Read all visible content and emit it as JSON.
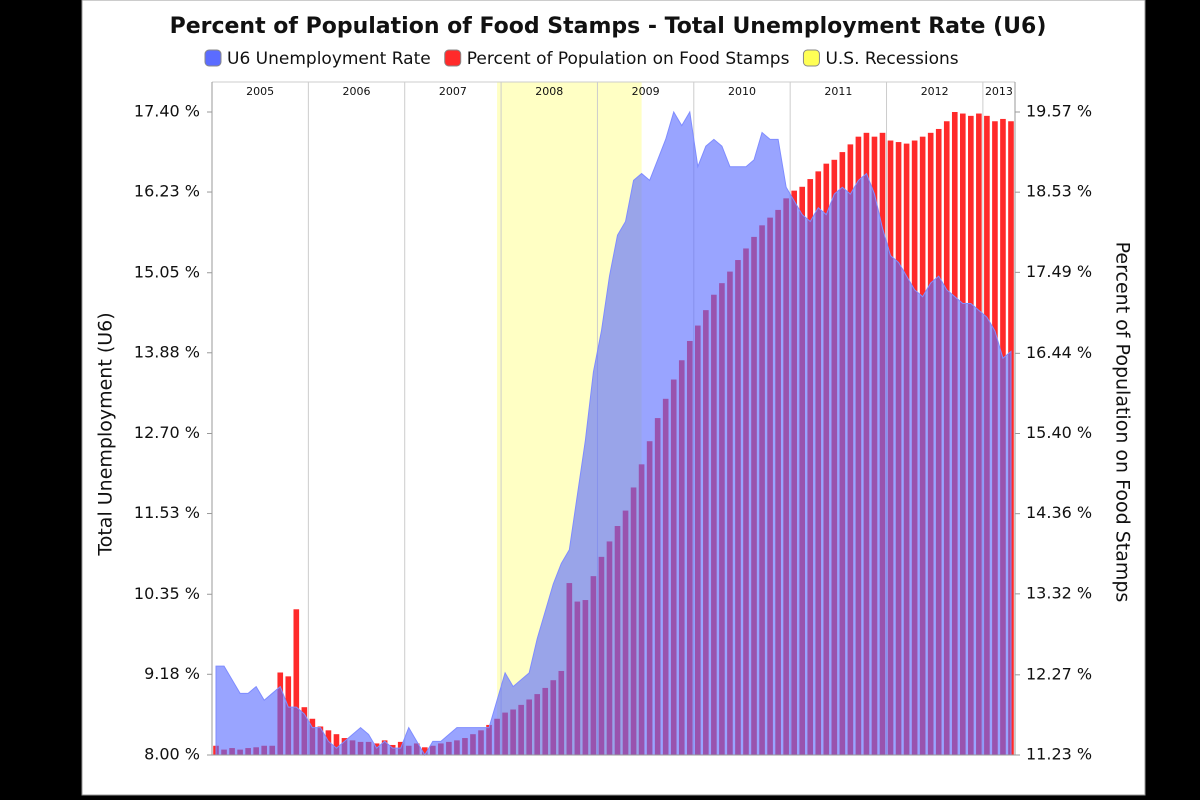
{
  "chart_data": {
    "type": "bar-area",
    "title": "Percent of Population of Food Stamps - Total Unemployment Rate (U6)",
    "y_label": "Total Unemployment (U6)",
    "y2_label": "Percent of Population on Food Stamps",
    "categories": [
      "2005",
      null,
      null,
      null,
      null,
      null,
      null,
      null,
      null,
      null,
      null,
      null,
      "2006",
      null,
      null,
      null,
      null,
      null,
      null,
      null,
      null,
      null,
      null,
      null,
      "2007",
      null,
      null,
      null,
      null,
      null,
      null,
      null,
      null,
      null,
      null,
      null,
      "2008",
      null,
      null,
      null,
      null,
      null,
      null,
      null,
      null,
      null,
      null,
      null,
      "2009",
      null,
      null,
      null,
      null,
      null,
      null,
      null,
      null,
      null,
      null,
      null,
      "2010",
      null,
      null,
      null,
      null,
      null,
      null,
      null,
      null,
      null,
      null,
      null,
      "2011",
      null,
      null,
      null,
      null,
      null,
      null,
      null,
      null,
      null,
      null,
      null,
      "2012",
      null,
      null,
      null,
      null,
      null,
      null,
      null,
      null,
      null,
      null,
      null,
      "2013",
      null,
      null,
      null
    ],
    "series": [
      {
        "name": "U6 Unemployment Rate",
        "color": "#5b6cff",
        "kind": "area",
        "axis": "y",
        "values": [
          9.3,
          9.3,
          9.1,
          8.9,
          8.9,
          9.0,
          8.8,
          8.9,
          9.0,
          8.7,
          8.7,
          8.6,
          8.4,
          8.4,
          8.2,
          8.1,
          8.2,
          8.3,
          8.4,
          8.3,
          8.1,
          8.2,
          8.1,
          8.1,
          8.4,
          8.2,
          8.0,
          8.2,
          8.2,
          8.3,
          8.4,
          8.4,
          8.4,
          8.4,
          8.4,
          8.8,
          9.2,
          9.0,
          9.1,
          9.2,
          9.7,
          10.1,
          10.5,
          10.8,
          11.0,
          11.8,
          12.6,
          13.6,
          14.2,
          15.0,
          15.6,
          15.8,
          16.4,
          16.5,
          16.4,
          16.7,
          17.0,
          17.4,
          17.2,
          17.4,
          16.6,
          16.9,
          17.0,
          16.9,
          16.6,
          16.6,
          16.6,
          16.7,
          17.1,
          17.0,
          17.0,
          16.3,
          16.1,
          15.9,
          15.8,
          16.0,
          15.9,
          16.2,
          16.3,
          16.2,
          16.4,
          16.5,
          16.2,
          15.7,
          15.3,
          15.2,
          15.0,
          14.8,
          14.7,
          14.9,
          15.0,
          14.8,
          14.7,
          14.6,
          14.6,
          14.5,
          14.4,
          14.2,
          13.8,
          13.9
        ]
      },
      {
        "name": "Percent of Population on Food Stamps",
        "color": "#ff2a2a",
        "kind": "bar",
        "axis": "y2",
        "values": [
          11.35,
          11.3,
          11.32,
          11.3,
          11.32,
          11.33,
          11.35,
          11.35,
          12.3,
          12.25,
          13.12,
          11.85,
          11.7,
          11.6,
          11.55,
          11.5,
          11.45,
          11.42,
          11.4,
          11.4,
          11.38,
          11.42,
          11.36,
          11.4,
          11.35,
          11.38,
          11.33,
          11.35,
          11.38,
          11.4,
          11.42,
          11.45,
          11.5,
          11.55,
          11.62,
          11.7,
          11.78,
          11.82,
          11.88,
          11.95,
          12.02,
          12.1,
          12.2,
          12.32,
          13.46,
          13.22,
          13.24,
          13.55,
          13.8,
          14.0,
          14.2,
          14.4,
          14.7,
          15.0,
          15.3,
          15.6,
          15.85,
          16.1,
          16.35,
          16.6,
          16.8,
          17.0,
          17.2,
          17.35,
          17.5,
          17.65,
          17.8,
          17.95,
          18.1,
          18.2,
          18.3,
          18.45,
          18.55,
          18.6,
          18.7,
          18.8,
          18.9,
          18.95,
          19.05,
          19.15,
          19.25,
          19.3,
          19.25,
          19.3,
          19.2,
          19.18,
          19.16,
          19.2,
          19.25,
          19.3,
          19.35,
          19.45,
          19.57,
          19.55,
          19.52,
          19.55,
          19.52,
          19.45,
          19.48,
          19.45
        ]
      },
      {
        "name": "U.S. Recessions",
        "color": "#ffff55",
        "kind": "band",
        "span": [
          35,
          53
        ]
      }
    ],
    "ylim": [
      8.0,
      17.4
    ],
    "yticks": [
      {
        "value": 8.0,
        "label": "8.00 %"
      },
      {
        "value": 9.18,
        "label": "9.18 %"
      },
      {
        "value": 10.35,
        "label": "10.35 %"
      },
      {
        "value": 11.53,
        "label": "11.53 %"
      },
      {
        "value": 12.7,
        "label": "12.70 %"
      },
      {
        "value": 13.88,
        "label": "13.88 %"
      },
      {
        "value": 15.05,
        "label": "15.05 %"
      },
      {
        "value": 16.23,
        "label": "16.23 %"
      },
      {
        "value": 17.4,
        "label": "17.40 %"
      }
    ],
    "y2lim": [
      11.23,
      19.57
    ],
    "y2ticks": [
      {
        "value": 11.23,
        "label": "11.23 %"
      },
      {
        "value": 12.27,
        "label": "12.27 %"
      },
      {
        "value": 13.32,
        "label": "13.32 %"
      },
      {
        "value": 14.36,
        "label": "14.36 %"
      },
      {
        "value": 15.4,
        "label": "15.40 %"
      },
      {
        "value": 16.44,
        "label": "16.44 %"
      },
      {
        "value": 17.49,
        "label": "17.49 %"
      },
      {
        "value": 18.53,
        "label": "18.53 %"
      },
      {
        "value": 19.57,
        "label": "19.57 %"
      }
    ]
  }
}
